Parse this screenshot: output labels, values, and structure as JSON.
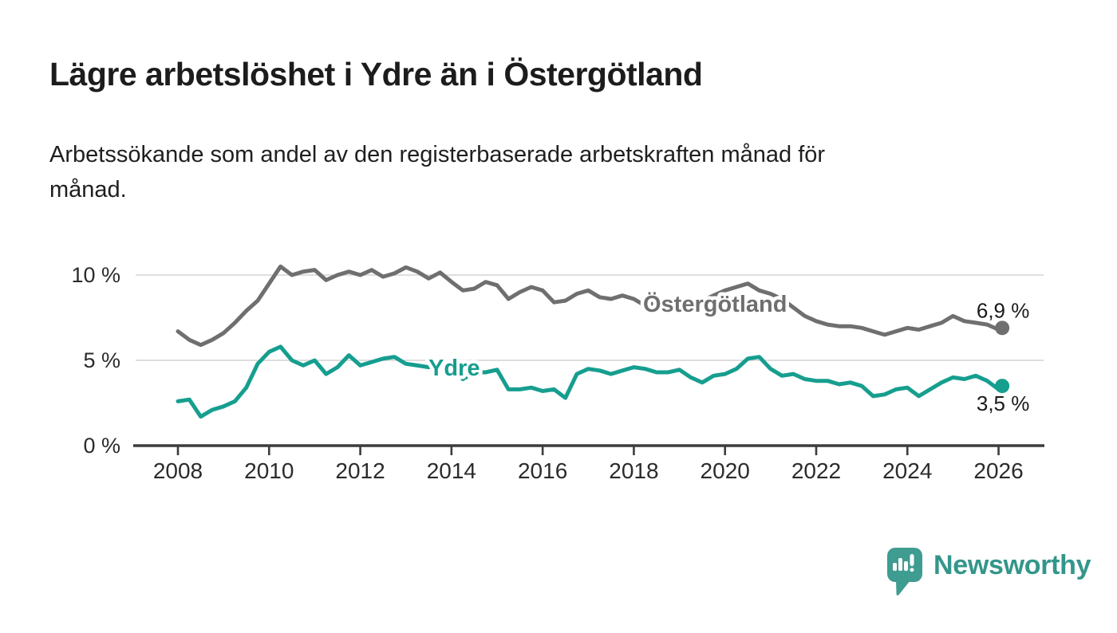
{
  "header": {
    "title": "Lägre arbetslöshet i Ydre än i Östergötland",
    "subtitle": "Arbetssökande som andel av den registerbaserade arbetskraften månad för månad.",
    "subtitle_line1": "Arbetssökande som andel av den registerbaserade arbetskraften månad för",
    "subtitle_line2": "månad."
  },
  "chart_data": {
    "type": "line",
    "title": "Lägre arbetslöshet i Ydre än i Östergötland",
    "subtitle": "Arbetssökande som andel av den registerbaserade arbetskraften månad för månad.",
    "xlabel": "",
    "ylabel": "",
    "y_unit": "%",
    "ylim": [
      0,
      11
    ],
    "xlim": [
      2007.1,
      2026.9
    ],
    "grid": "horizontal",
    "legend_position": "inline-labels",
    "yticks": [
      {
        "value": 0,
        "label": "0 %"
      },
      {
        "value": 5,
        "label": "5 %"
      },
      {
        "value": 10,
        "label": "10 %"
      }
    ],
    "xticks": [
      {
        "value": 2008,
        "label": "2008"
      },
      {
        "value": 2010,
        "label": "2010"
      },
      {
        "value": 2012,
        "label": "2012"
      },
      {
        "value": 2014,
        "label": "2014"
      },
      {
        "value": 2016,
        "label": "2016"
      },
      {
        "value": 2018,
        "label": "2018"
      },
      {
        "value": 2020,
        "label": "2020"
      },
      {
        "value": 2022,
        "label": "2022"
      },
      {
        "value": 2024,
        "label": "2024"
      },
      {
        "value": 2026,
        "label": "2026"
      }
    ],
    "x": [
      2008.0,
      2008.25,
      2008.5,
      2008.75,
      2009.0,
      2009.25,
      2009.5,
      2009.75,
      2010.0,
      2010.25,
      2010.5,
      2010.75,
      2011.0,
      2011.25,
      2011.5,
      2011.75,
      2012.0,
      2012.25,
      2012.5,
      2012.75,
      2013.0,
      2013.25,
      2013.5,
      2013.75,
      2014.0,
      2014.25,
      2014.5,
      2014.75,
      2015.0,
      2015.25,
      2015.5,
      2015.75,
      2016.0,
      2016.25,
      2016.5,
      2016.75,
      2017.0,
      2017.25,
      2017.5,
      2017.75,
      2018.0,
      2018.25,
      2018.5,
      2018.75,
      2019.0,
      2019.25,
      2019.5,
      2019.75,
      2020.0,
      2020.25,
      2020.5,
      2020.75,
      2021.0,
      2021.25,
      2021.5,
      2021.75,
      2022.0,
      2022.25,
      2022.5,
      2022.75,
      2023.0,
      2023.25,
      2023.5,
      2023.75,
      2024.0,
      2024.25,
      2024.5,
      2024.75,
      2025.0,
      2025.25,
      2025.5,
      2025.75,
      2026.0,
      2026.08
    ],
    "series": [
      {
        "name": "Östergötland",
        "color": "#6f6f6f",
        "end_label": "6,9 %",
        "end_value": 6.9,
        "values": [
          6.7,
          6.2,
          5.9,
          6.2,
          6.6,
          7.2,
          7.9,
          8.5,
          9.5,
          10.5,
          10.0,
          10.2,
          10.3,
          9.7,
          10.0,
          10.2,
          10.0,
          10.3,
          9.9,
          10.1,
          10.45,
          10.2,
          9.8,
          10.15,
          9.6,
          9.1,
          9.2,
          9.6,
          9.4,
          8.6,
          9.0,
          9.3,
          9.1,
          8.4,
          8.5,
          8.9,
          9.1,
          8.7,
          8.6,
          8.8,
          8.6,
          8.2,
          8.4,
          8.2,
          8.3,
          8.3,
          8.5,
          8.8,
          9.1,
          9.3,
          9.5,
          9.1,
          8.9,
          8.6,
          8.1,
          7.6,
          7.3,
          7.1,
          7.0,
          7.0,
          6.9,
          6.7,
          6.5,
          6.7,
          6.9,
          6.8,
          7.0,
          7.2,
          7.6,
          7.3,
          7.2,
          7.1,
          6.8,
          6.9
        ]
      },
      {
        "name": "Ydre",
        "color": "#169e8f",
        "end_label": "3,5 %",
        "end_value": 3.5,
        "values": [
          2.6,
          2.7,
          1.7,
          2.1,
          2.3,
          2.6,
          3.4,
          4.8,
          5.5,
          5.8,
          5.0,
          4.7,
          5.0,
          4.2,
          4.6,
          5.3,
          4.7,
          4.9,
          5.1,
          5.2,
          4.8,
          4.7,
          4.6,
          4.9,
          4.8,
          3.9,
          4.3,
          4.3,
          4.45,
          3.3,
          3.3,
          3.4,
          3.2,
          3.3,
          2.8,
          4.2,
          4.5,
          4.4,
          4.2,
          4.4,
          4.6,
          4.5,
          4.3,
          4.3,
          4.45,
          4.0,
          3.7,
          4.1,
          4.2,
          4.5,
          5.1,
          5.2,
          4.5,
          4.1,
          4.2,
          3.9,
          3.8,
          3.8,
          3.6,
          3.7,
          3.5,
          2.9,
          3.0,
          3.3,
          3.4,
          2.9,
          3.3,
          3.7,
          4.0,
          3.9,
          4.1,
          3.8,
          3.3,
          3.5
        ]
      }
    ]
  },
  "footer": {
    "brand": "Newsworthy",
    "brand_text_color": "#33968a",
    "logo_color": "#3f9c90"
  }
}
